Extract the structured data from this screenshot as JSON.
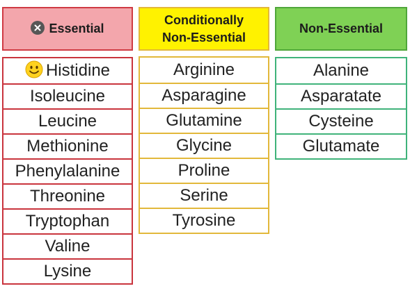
{
  "columns": {
    "essential": {
      "header": "Essential",
      "header_icon": "close-icon",
      "items": [
        "Histidine",
        "Isoleucine",
        "Leucine",
        "Methionine",
        "Phenylalanine",
        "Threonine",
        "Tryptophan",
        "Valine",
        "Lysine"
      ],
      "first_item_icon": "smiley-icon",
      "colors": {
        "fill": "#f3a6ac",
        "border": "#c9343d"
      }
    },
    "conditional": {
      "header_line1": "Conditionally",
      "header_line2": "Non-Essential",
      "items": [
        "Arginine",
        "Asparagine",
        "Glutamine",
        "Glycine",
        "Proline",
        "Serine",
        "Tyrosine"
      ],
      "colors": {
        "fill": "#fff200",
        "border": "#e2b83a"
      }
    },
    "nonessential": {
      "header": "Non-Essential",
      "items": [
        "Alanine",
        "Asparatate",
        "Cysteine",
        "Glutamate"
      ],
      "colors": {
        "fill": "#7fd155",
        "border": "#3fb37a"
      }
    }
  }
}
